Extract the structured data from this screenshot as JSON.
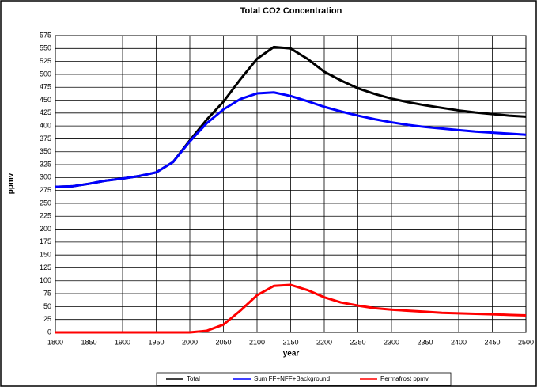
{
  "chart_data": {
    "type": "line",
    "title": "Total CO2 Concentration",
    "x_label": "year",
    "y_label": "ppmv",
    "x": [
      1800,
      1825,
      1850,
      1875,
      1900,
      1925,
      1950,
      1975,
      2000,
      2025,
      2050,
      2075,
      2100,
      2125,
      2150,
      2175,
      2200,
      2225,
      2250,
      2275,
      2300,
      2325,
      2350,
      2375,
      2400,
      2425,
      2450,
      2475,
      2500
    ],
    "series": [
      {
        "name": "Total",
        "color": "#000000",
        "values": [
          282,
          283,
          288,
          294,
          298,
          303,
          310,
          330,
          372,
          412,
          447,
          490,
          530,
          553,
          550,
          530,
          505,
          488,
          473,
          462,
          453,
          446,
          440,
          435,
          430,
          426,
          423,
          420,
          418
        ]
      },
      {
        "name": "Sum FF+NFF+Background",
        "color": "#0000ff",
        "values": [
          282,
          283,
          288,
          294,
          298,
          303,
          310,
          330,
          370,
          405,
          432,
          452,
          463,
          465,
          458,
          448,
          437,
          428,
          420,
          413,
          407,
          402,
          398,
          395,
          392,
          389,
          387,
          385,
          383
        ]
      },
      {
        "name": "Permafrost ppmv",
        "color": "#ff0000",
        "values": [
          0,
          0,
          0,
          0,
          0,
          0,
          0,
          0,
          0,
          3,
          15,
          42,
          72,
          90,
          92,
          82,
          68,
          58,
          52,
          47,
          44,
          42,
          40,
          38,
          37,
          36,
          35,
          34,
          33
        ]
      }
    ],
    "xlim": [
      1800,
      2500
    ],
    "xticks": [
      1800,
      1850,
      1900,
      1950,
      2000,
      2050,
      2100,
      2150,
      2200,
      2250,
      2300,
      2350,
      2400,
      2450,
      2500
    ],
    "ylim": [
      0,
      575
    ],
    "yticks": [
      0,
      25,
      50,
      75,
      100,
      125,
      150,
      175,
      200,
      225,
      250,
      275,
      300,
      325,
      350,
      375,
      400,
      425,
      450,
      475,
      500,
      525,
      550,
      575
    ],
    "grid": true,
    "legend": "bottom"
  }
}
